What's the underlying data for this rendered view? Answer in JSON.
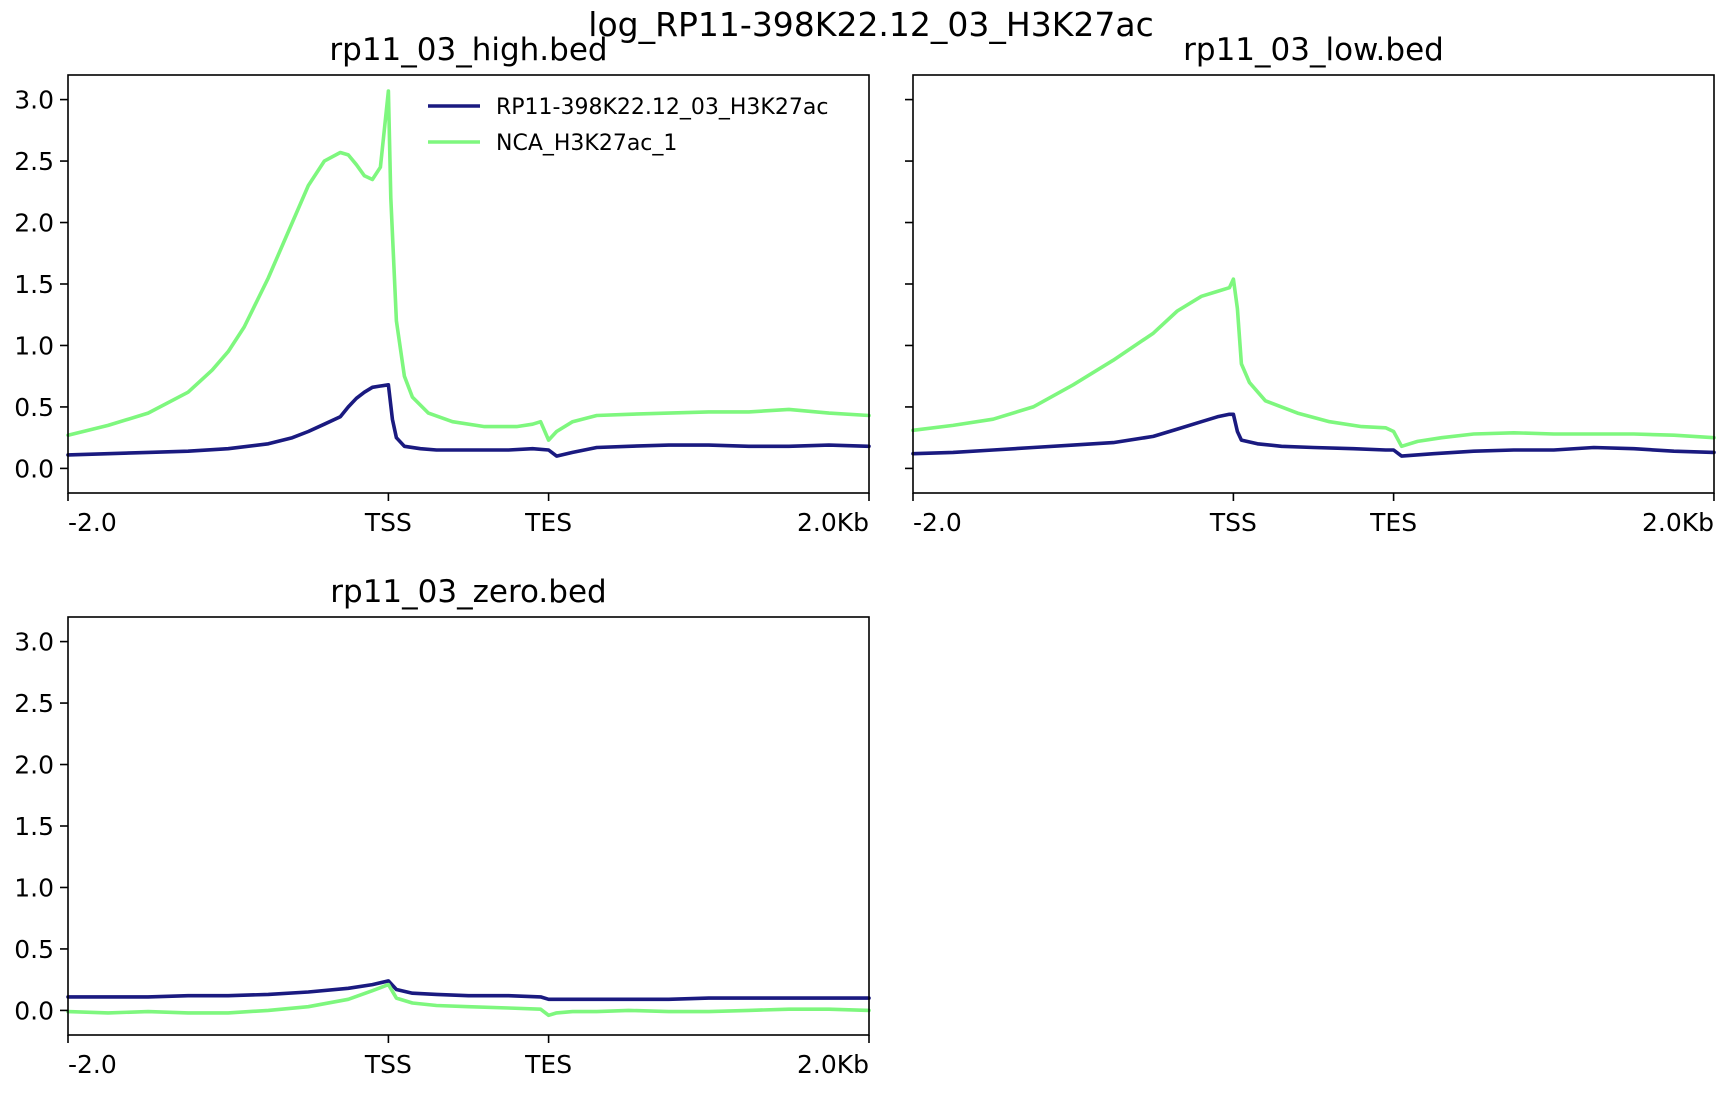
{
  "figure": {
    "suptitle": "log_RP11-398K22.12_03_H3K27ac"
  },
  "colors": {
    "series_1": "#1a1a80",
    "series_2": "#7ef77e",
    "axes": "#000000",
    "background": "#ffffff"
  },
  "legend": {
    "placement": "top-right of first panel",
    "entries": [
      "RP11-398K22.12_03_H3K27ac",
      "NCA_H3K27ac_1"
    ]
  },
  "chart_data": [
    {
      "type": "line",
      "title": "rp11_03_high.bed",
      "xlabel": "",
      "ylabel": "",
      "xlim": [
        0,
        100
      ],
      "ylim": [
        -0.2,
        3.2
      ],
      "x_ticks": [
        0,
        40,
        60,
        100
      ],
      "x_tick_labels": [
        "-2.0",
        "TSS",
        "TES",
        "2.0Kb"
      ],
      "y_ticks": [
        0.0,
        0.5,
        1.0,
        1.5,
        2.0,
        2.5,
        3.0
      ],
      "y_tick_labels": [
        "0.0",
        "0.5",
        "1.0",
        "1.5",
        "2.0",
        "2.5",
        "3.0"
      ],
      "grid": false,
      "legend": true,
      "series": [
        {
          "name": "RP11-398K22.12_03_H3K27ac",
          "color": "#1a1a80",
          "x": [
            0,
            5,
            10,
            15,
            20,
            25,
            28,
            30,
            32,
            34,
            35,
            36,
            37,
            38,
            39,
            40,
            40.5,
            41,
            42,
            44,
            46,
            50,
            55,
            58,
            60,
            61,
            63,
            66,
            70,
            75,
            80,
            85,
            90,
            95,
            100
          ],
          "y": [
            0.11,
            0.12,
            0.13,
            0.14,
            0.16,
            0.2,
            0.25,
            0.3,
            0.36,
            0.42,
            0.5,
            0.57,
            0.62,
            0.66,
            0.67,
            0.68,
            0.4,
            0.25,
            0.18,
            0.16,
            0.15,
            0.15,
            0.15,
            0.16,
            0.15,
            0.1,
            0.13,
            0.17,
            0.18,
            0.19,
            0.19,
            0.18,
            0.18,
            0.19,
            0.18
          ]
        },
        {
          "name": "NCA_H3K27ac_1",
          "color": "#7ef77e",
          "x": [
            0,
            5,
            10,
            15,
            18,
            20,
            22,
            25,
            28,
            30,
            32,
            34,
            35,
            36,
            37,
            38,
            39,
            40,
            40.3,
            41,
            42,
            43,
            45,
            48,
            52,
            56,
            58,
            59,
            60,
            61,
            63,
            66,
            70,
            75,
            80,
            85,
            90,
            95,
            100
          ],
          "y": [
            0.27,
            0.35,
            0.45,
            0.62,
            0.8,
            0.95,
            1.15,
            1.55,
            2.0,
            2.3,
            2.5,
            2.57,
            2.55,
            2.47,
            2.38,
            2.35,
            2.45,
            3.07,
            2.2,
            1.2,
            0.75,
            0.58,
            0.45,
            0.38,
            0.34,
            0.34,
            0.36,
            0.38,
            0.23,
            0.3,
            0.38,
            0.43,
            0.44,
            0.45,
            0.46,
            0.46,
            0.48,
            0.45,
            0.43
          ]
        }
      ]
    },
    {
      "type": "line",
      "title": "rp11_03_low.bed",
      "xlabel": "",
      "ylabel": "",
      "xlim": [
        0,
        100
      ],
      "ylim": [
        -0.2,
        3.2
      ],
      "x_ticks": [
        0,
        40,
        60,
        100
      ],
      "x_tick_labels": [
        "-2.0",
        "TSS",
        "TES",
        "2.0Kb"
      ],
      "y_ticks": [
        0.0,
        0.5,
        1.0,
        1.5,
        2.0,
        2.5,
        3.0
      ],
      "y_tick_labels": [],
      "grid": false,
      "legend": false,
      "series": [
        {
          "name": "RP11-398K22.12_03_H3K27ac",
          "color": "#1a1a80",
          "x": [
            0,
            5,
            10,
            15,
            20,
            25,
            30,
            33,
            36,
            38,
            39.5,
            40,
            40.5,
            41,
            43,
            46,
            50,
            55,
            59,
            60,
            61,
            65,
            70,
            75,
            80,
            85,
            90,
            95,
            100
          ],
          "y": [
            0.12,
            0.13,
            0.15,
            0.17,
            0.19,
            0.21,
            0.26,
            0.32,
            0.38,
            0.42,
            0.44,
            0.44,
            0.3,
            0.23,
            0.2,
            0.18,
            0.17,
            0.16,
            0.15,
            0.15,
            0.1,
            0.12,
            0.14,
            0.15,
            0.15,
            0.17,
            0.16,
            0.14,
            0.13
          ]
        },
        {
          "name": "NCA_H3K27ac_1",
          "color": "#7ef77e",
          "x": [
            0,
            5,
            10,
            15,
            20,
            25,
            30,
            33,
            36,
            38,
            39.5,
            40,
            40.5,
            41,
            42,
            44,
            48,
            52,
            56,
            59,
            60,
            61,
            63,
            66,
            70,
            75,
            80,
            85,
            90,
            95,
            100
          ],
          "y": [
            0.31,
            0.35,
            0.4,
            0.5,
            0.68,
            0.88,
            1.1,
            1.28,
            1.4,
            1.44,
            1.47,
            1.54,
            1.3,
            0.85,
            0.7,
            0.55,
            0.45,
            0.38,
            0.34,
            0.33,
            0.3,
            0.18,
            0.22,
            0.25,
            0.28,
            0.29,
            0.28,
            0.28,
            0.28,
            0.27,
            0.25
          ]
        }
      ]
    },
    {
      "type": "line",
      "title": "rp11_03_zero.bed",
      "xlabel": "",
      "ylabel": "",
      "xlim": [
        0,
        100
      ],
      "ylim": [
        -0.2,
        3.2
      ],
      "x_ticks": [
        0,
        40,
        60,
        100
      ],
      "x_tick_labels": [
        "-2.0",
        "TSS",
        "TES",
        "2.0Kb"
      ],
      "y_ticks": [
        0.0,
        0.5,
        1.0,
        1.5,
        2.0,
        2.5,
        3.0
      ],
      "y_tick_labels": [
        "0.0",
        "0.5",
        "1.0",
        "1.5",
        "2.0",
        "2.5",
        "3.0"
      ],
      "grid": false,
      "legend": false,
      "series": [
        {
          "name": "RP11-398K22.12_03_H3K27ac",
          "color": "#1a1a80",
          "x": [
            0,
            5,
            10,
            15,
            20,
            25,
            30,
            35,
            38,
            40,
            41,
            43,
            46,
            50,
            55,
            59,
            60,
            62,
            65,
            70,
            75,
            80,
            85,
            90,
            95,
            100
          ],
          "y": [
            0.11,
            0.11,
            0.11,
            0.12,
            0.12,
            0.13,
            0.15,
            0.18,
            0.21,
            0.24,
            0.17,
            0.14,
            0.13,
            0.12,
            0.12,
            0.11,
            0.09,
            0.09,
            0.09,
            0.09,
            0.09,
            0.1,
            0.1,
            0.1,
            0.1,
            0.1
          ]
        },
        {
          "name": "NCA_H3K27ac_1",
          "color": "#7ef77e",
          "x": [
            0,
            5,
            10,
            15,
            20,
            25,
            30,
            35,
            38,
            40,
            41,
            43,
            46,
            50,
            55,
            59,
            60,
            61,
            63,
            66,
            70,
            75,
            80,
            85,
            90,
            95,
            100
          ],
          "y": [
            -0.01,
            -0.02,
            -0.01,
            -0.02,
            -0.02,
            0.0,
            0.03,
            0.09,
            0.16,
            0.21,
            0.1,
            0.06,
            0.04,
            0.03,
            0.02,
            0.01,
            -0.04,
            -0.02,
            -0.01,
            -0.01,
            0.0,
            -0.01,
            -0.01,
            0.0,
            0.01,
            0.01,
            0.0
          ]
        }
      ]
    }
  ]
}
